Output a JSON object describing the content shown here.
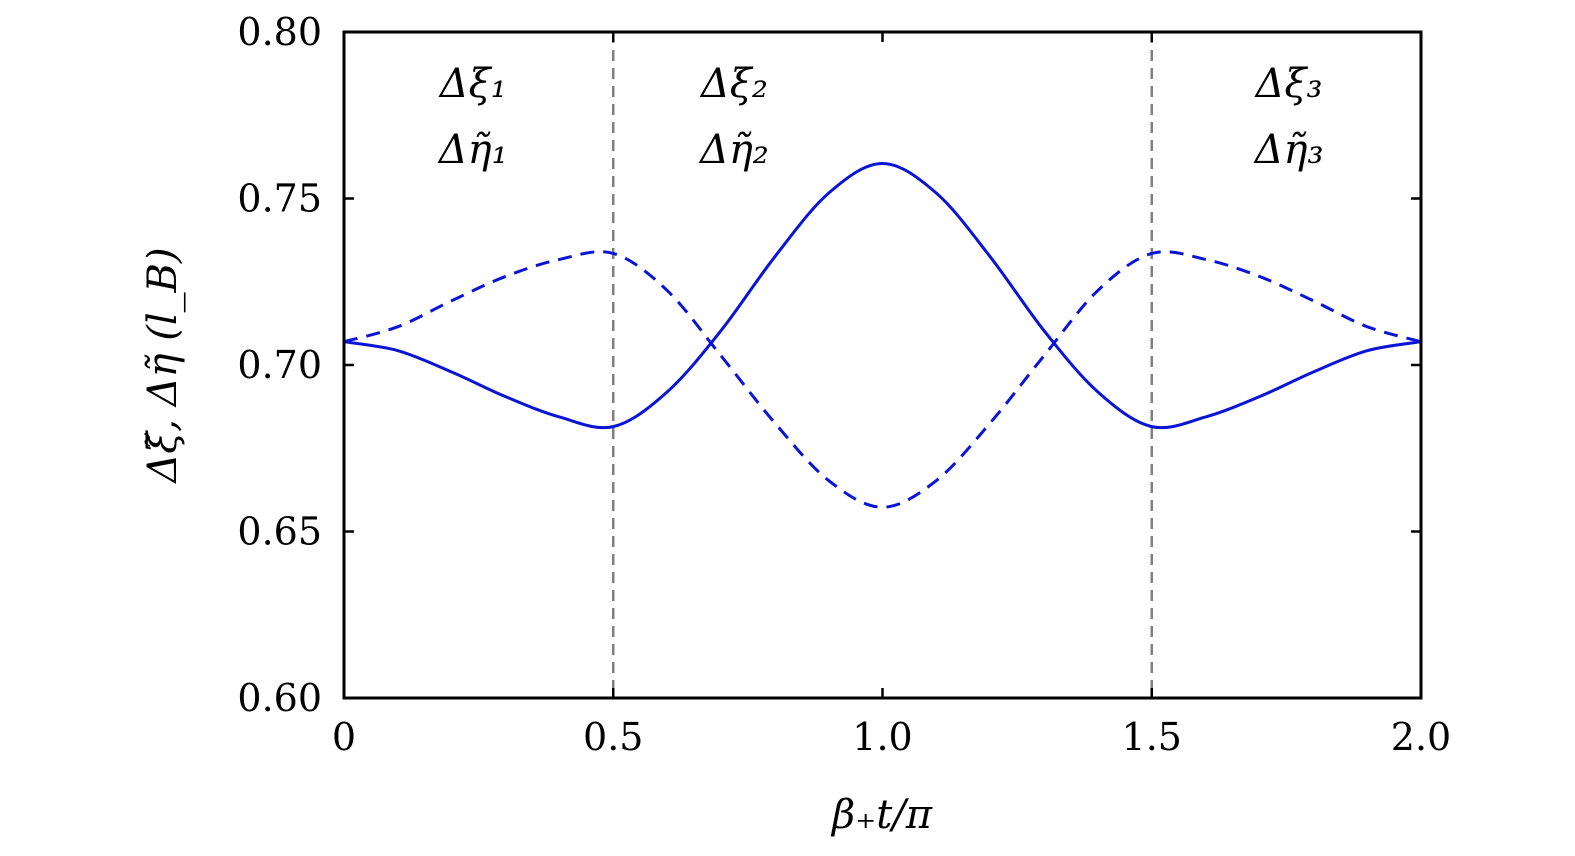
{
  "chart_data": {
    "type": "line",
    "xlabel": "β₊t/π",
    "ylabel": "Δξ̃, Δη̃ (l_B)",
    "xlim": [
      0,
      2.0
    ],
    "ylim": [
      0.6,
      0.8
    ],
    "x_ticks": [
      "0",
      "0.5",
      "1.0",
      "1.5",
      "2.0"
    ],
    "y_ticks": [
      "0.60",
      "0.65",
      "0.70",
      "0.75",
      "0.80"
    ],
    "x_tick_values": [
      0,
      0.5,
      1.0,
      1.5,
      2.0
    ],
    "y_tick_values": [
      0.6,
      0.65,
      0.7,
      0.75,
      0.8
    ],
    "grid": false,
    "legend": "none",
    "colors": {
      "series": "#0a14d6",
      "divider": "#808080",
      "axis": "#000000"
    },
    "dividers": [
      0.5,
      1.5
    ],
    "region_labels": [
      {
        "x": 0.24,
        "top": "Δξ₁",
        "bottom": "Δη̃₁"
      },
      {
        "x": 0.725,
        "top": "Δξ₂",
        "bottom": "Δη̃₂"
      },
      {
        "x": 1.755,
        "top": "Δξ₃",
        "bottom": "Δη̃₃"
      }
    ],
    "series": [
      {
        "line_style": "solid",
        "x": [
          0,
          0.1,
          0.2,
          0.3,
          0.4,
          0.5,
          0.6,
          0.7,
          0.8,
          0.9,
          1.0,
          1.1,
          1.2,
          1.3,
          1.4,
          1.5,
          1.6,
          1.7,
          1.8,
          1.9,
          2.0
        ],
        "values": [
          0.707,
          0.7043,
          0.6979,
          0.6905,
          0.6844,
          0.6815,
          0.6919,
          0.7103,
          0.7325,
          0.7516,
          0.7605,
          0.7516,
          0.7325,
          0.7103,
          0.6919,
          0.6815,
          0.6844,
          0.6905,
          0.6979,
          0.7043,
          0.707
        ]
      },
      {
        "line_style": "dashed",
        "x": [
          0,
          0.1,
          0.2,
          0.3,
          0.4,
          0.5,
          0.6,
          0.7,
          0.8,
          0.9,
          1.0,
          1.1,
          1.2,
          1.3,
          1.4,
          1.5,
          1.6,
          1.7,
          1.8,
          1.9,
          2.0
        ],
        "values": [
          0.707,
          0.7115,
          0.7193,
          0.7266,
          0.7317,
          0.7335,
          0.7224,
          0.7028,
          0.6826,
          0.6653,
          0.6573,
          0.6653,
          0.6826,
          0.7028,
          0.7224,
          0.7335,
          0.7317,
          0.7266,
          0.7193,
          0.7115,
          0.707
        ]
      }
    ]
  }
}
